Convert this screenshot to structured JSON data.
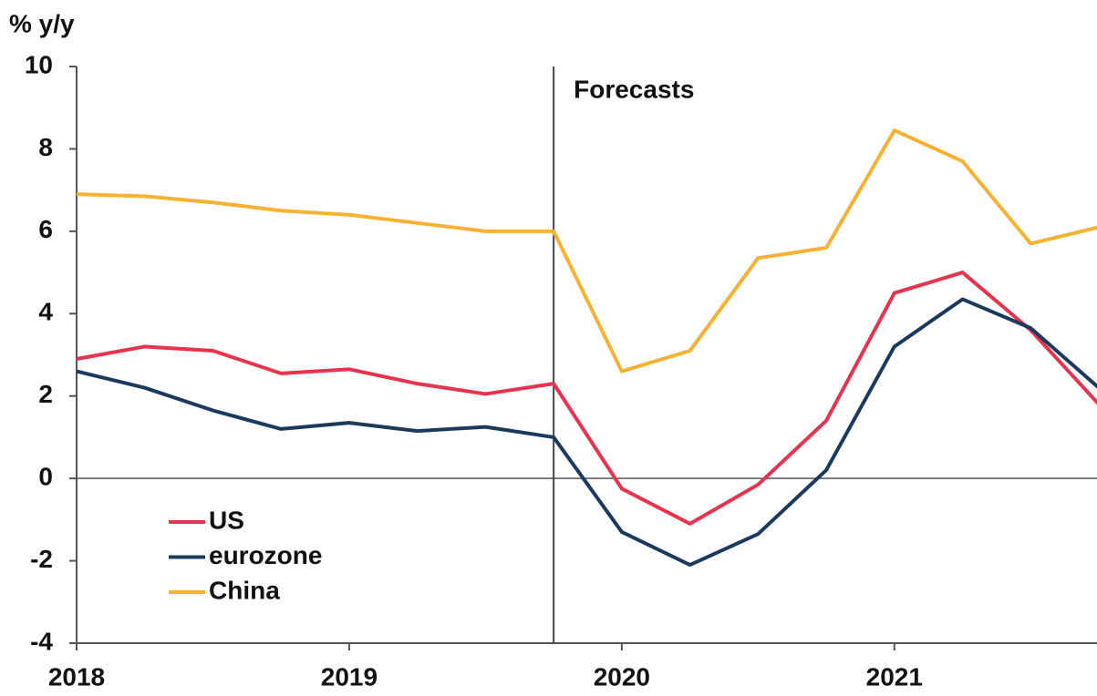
{
  "chart_data": {
    "type": "line",
    "ylabel": "% y/y",
    "x": [
      2018,
      2018.25,
      2018.5,
      2018.75,
      2019,
      2019.25,
      2019.5,
      2019.75,
      2020,
      2020.25,
      2020.5,
      2020.75,
      2021,
      2021.25,
      2021.5,
      2021.75
    ],
    "series": [
      {
        "name": "US",
        "color": "#e8334f",
        "values": [
          2.9,
          3.2,
          3.1,
          2.55,
          2.65,
          2.3,
          2.05,
          2.3,
          -0.25,
          -1.1,
          -0.15,
          1.4,
          4.5,
          5.0,
          3.6,
          1.8
        ]
      },
      {
        "name": "eurozone",
        "color": "#1b3a5e",
        "values": [
          2.6,
          2.2,
          1.65,
          1.2,
          1.35,
          1.15,
          1.25,
          1.0,
          -1.3,
          -2.1,
          -1.35,
          0.2,
          3.2,
          4.35,
          3.65,
          2.2
        ]
      },
      {
        "name": "China",
        "color": "#f7b234",
        "values": [
          6.9,
          6.85,
          6.7,
          6.5,
          6.4,
          6.2,
          6.0,
          6.0,
          2.6,
          3.1,
          5.35,
          5.6,
          8.45,
          7.7,
          5.7,
          6.1
        ]
      }
    ],
    "annotation": {
      "text": "Forecasts",
      "x": 2019.75
    },
    "xlim": [
      2018,
      2021.75
    ],
    "xticks": [
      2018,
      2019,
      2020,
      2021
    ],
    "ylim": [
      -4,
      10
    ],
    "yticks": [
      -4,
      -2,
      0,
      2,
      4,
      6,
      8,
      10
    ],
    "legend": "lower left",
    "grid": false
  }
}
